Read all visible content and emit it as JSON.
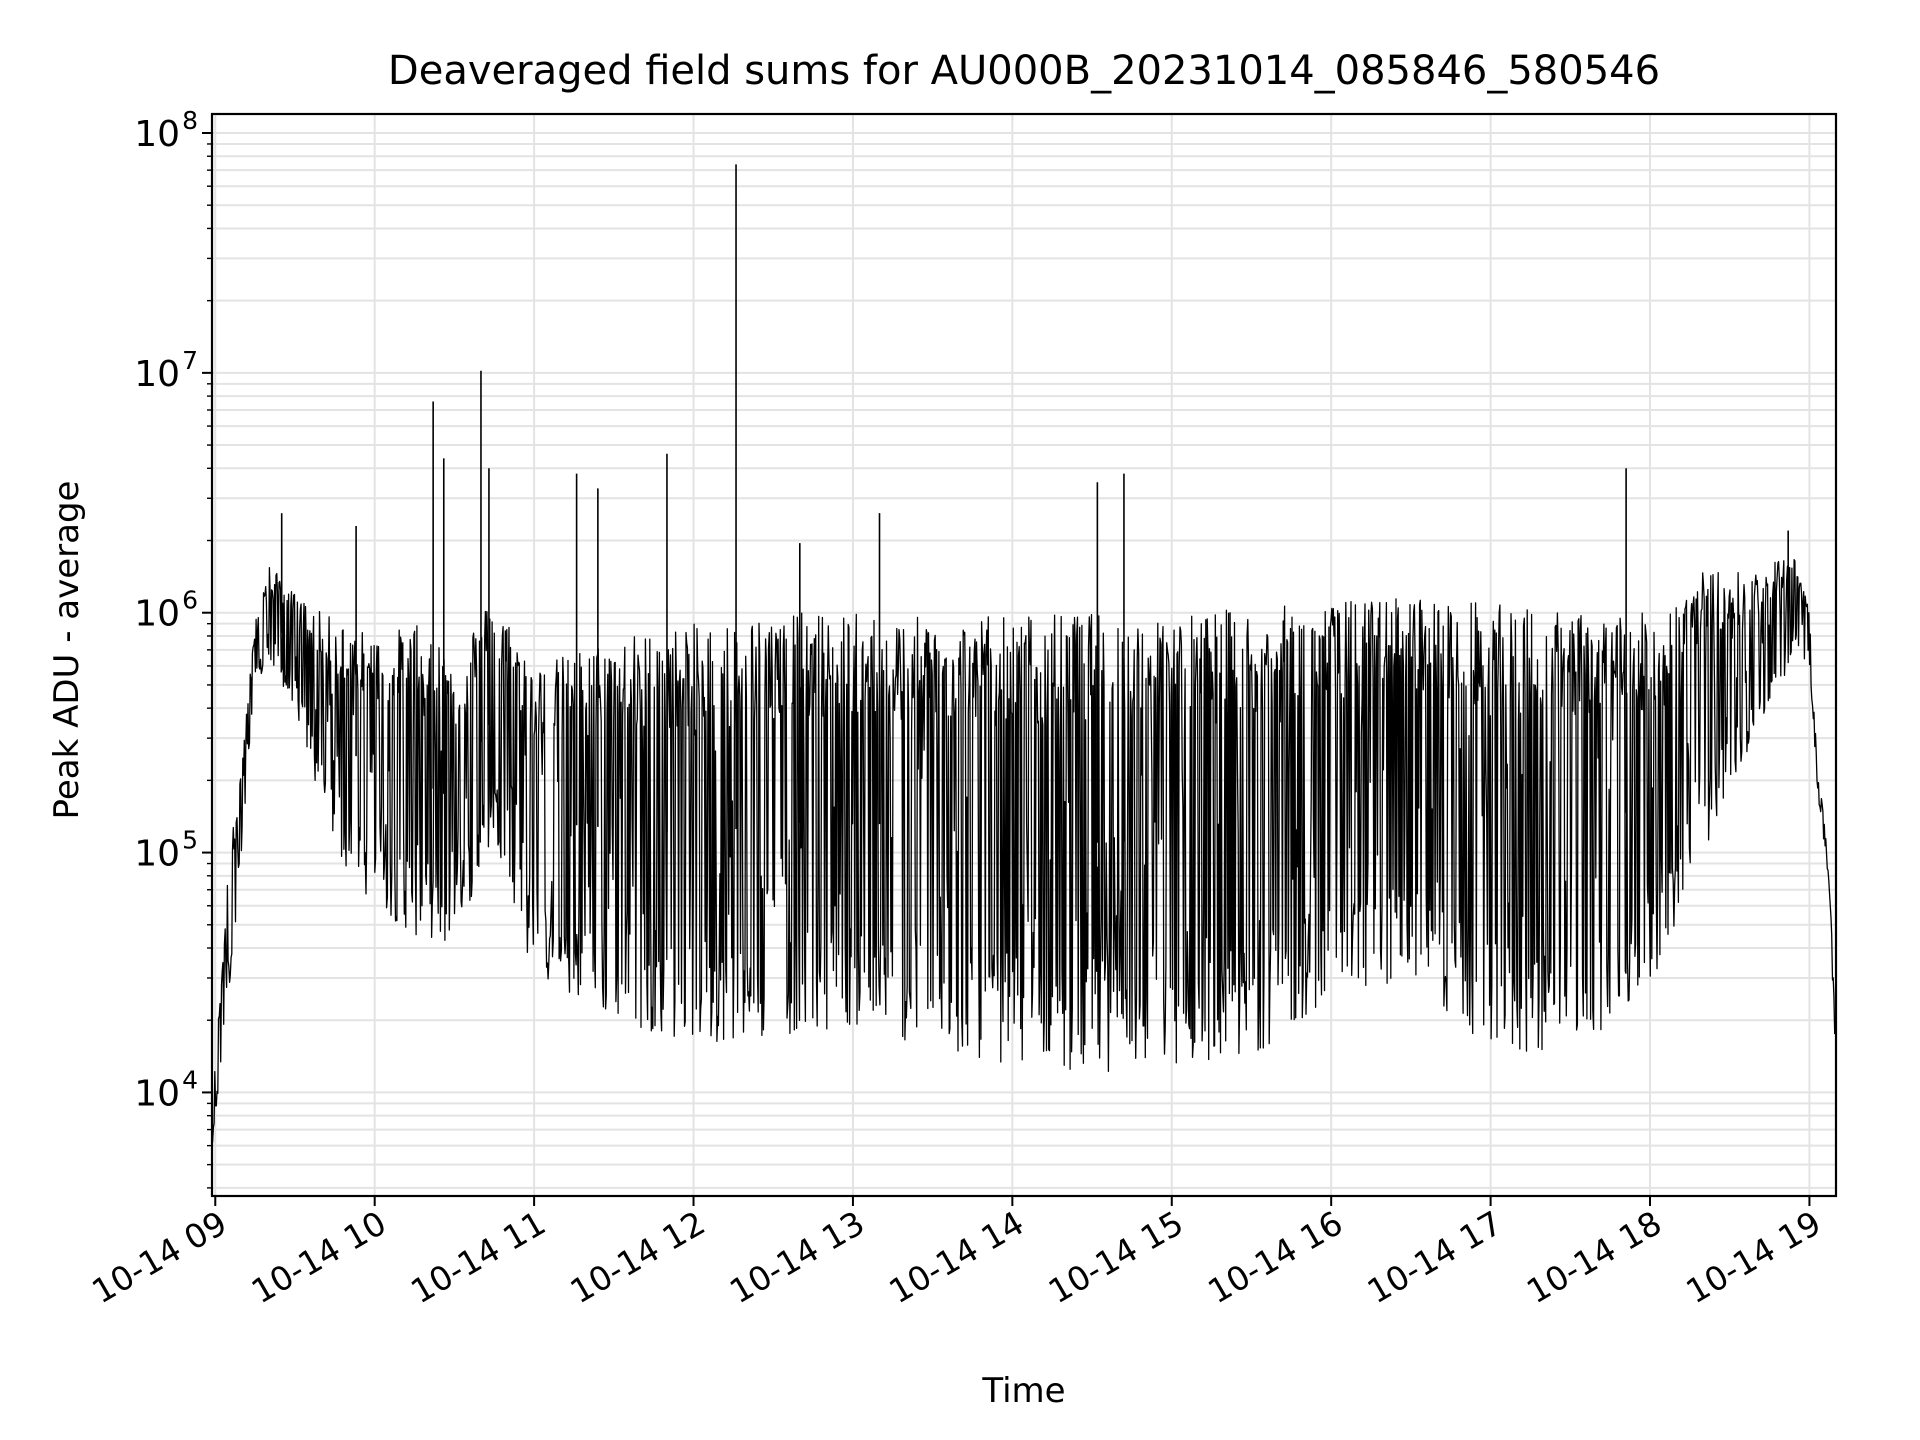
{
  "chart_data": {
    "type": "line",
    "title": "Deaveraged field sums for AU000B_20231014_085846_580546",
    "xlabel": "Time",
    "ylabel": "Peak ADU - average",
    "yscale": "log",
    "ylim": [
      3700,
      120000000
    ],
    "xlim": [
      "2023-10-14T08:58:46",
      "2023-10-14T19:10:00"
    ],
    "grid": true,
    "grid_color": "#e3e3e3",
    "line_color": "#000000",
    "x_ticks": [
      {
        "t": "2023-10-14T09:00:00",
        "label": "10-14 09"
      },
      {
        "t": "2023-10-14T10:00:00",
        "label": "10-14 10"
      },
      {
        "t": "2023-10-14T11:00:00",
        "label": "10-14 11"
      },
      {
        "t": "2023-10-14T12:00:00",
        "label": "10-14 12"
      },
      {
        "t": "2023-10-14T13:00:00",
        "label": "10-14 13"
      },
      {
        "t": "2023-10-14T14:00:00",
        "label": "10-14 14"
      },
      {
        "t": "2023-10-14T15:00:00",
        "label": "10-14 15"
      },
      {
        "t": "2023-10-14T16:00:00",
        "label": "10-14 16"
      },
      {
        "t": "2023-10-14T17:00:00",
        "label": "10-14 17"
      },
      {
        "t": "2023-10-14T18:00:00",
        "label": "10-14 18"
      },
      {
        "t": "2023-10-14T19:00:00",
        "label": "10-14 19"
      }
    ],
    "y_ticks": [
      {
        "value": 10000,
        "base": "10",
        "exp": "4"
      },
      {
        "value": 100000,
        "base": "10",
        "exp": "5"
      },
      {
        "value": 1000000,
        "base": "10",
        "exp": "6"
      },
      {
        "value": 10000000,
        "base": "10",
        "exp": "7"
      },
      {
        "value": 100000000,
        "base": "10",
        "exp": "8"
      }
    ],
    "series": [
      {
        "envelope": [
          {
            "t": "2023-10-14T08:59:00",
            "low": 6000,
            "high": 9000
          },
          {
            "t": "2023-10-14T09:05:00",
            "low": 25000,
            "high": 90000
          },
          {
            "t": "2023-10-14T09:10:00",
            "low": 100000,
            "high": 250000
          },
          {
            "t": "2023-10-14T09:15:00",
            "low": 500000,
            "high": 900000
          },
          {
            "t": "2023-10-14T09:20:00",
            "low": 600000,
            "high": 1600000
          },
          {
            "t": "2023-10-14T09:30:00",
            "low": 400000,
            "high": 1200000
          },
          {
            "t": "2023-10-14T09:40:00",
            "low": 150000,
            "high": 1000000
          },
          {
            "t": "2023-10-14T09:50:00",
            "low": 80000,
            "high": 900000
          },
          {
            "t": "2023-10-14T10:00:00",
            "low": 60000,
            "high": 800000
          },
          {
            "t": "2023-10-14T10:15:00",
            "low": 45000,
            "high": 900000
          },
          {
            "t": "2023-10-14T10:30:00",
            "low": 40000,
            "high": 700000
          },
          {
            "t": "2023-10-14T10:45:00",
            "low": 120000,
            "high": 1200000
          },
          {
            "t": "2023-10-14T11:00:00",
            "low": 30000,
            "high": 600000
          },
          {
            "t": "2023-10-14T11:30:00",
            "low": 20000,
            "high": 800000
          },
          {
            "t": "2023-10-14T12:00:00",
            "low": 16000,
            "high": 900000
          },
          {
            "t": "2023-10-14T12:30:00",
            "low": 17000,
            "high": 1000000
          },
          {
            "t": "2023-10-14T13:00:00",
            "low": 19000,
            "high": 1000000
          },
          {
            "t": "2023-10-14T13:30:00",
            "low": 15000,
            "high": 950000
          },
          {
            "t": "2023-10-14T14:00:00",
            "low": 13000,
            "high": 1000000
          },
          {
            "t": "2023-10-14T14:30:00",
            "low": 12000,
            "high": 1000000
          },
          {
            "t": "2023-10-14T15:00:00",
            "low": 13000,
            "high": 1000000
          },
          {
            "t": "2023-10-14T15:30:00",
            "low": 14000,
            "high": 1050000
          },
          {
            "t": "2023-10-14T16:00:00",
            "low": 25000,
            "high": 1100000
          },
          {
            "t": "2023-10-14T16:30:00",
            "low": 30000,
            "high": 1200000
          },
          {
            "t": "2023-10-14T17:00:00",
            "low": 14000,
            "high": 1100000
          },
          {
            "t": "2023-10-14T17:30:00",
            "low": 15000,
            "high": 1000000
          },
          {
            "t": "2023-10-14T18:00:00",
            "low": 25000,
            "high": 1000000
          },
          {
            "t": "2023-10-14T18:20:00",
            "low": 100000,
            "high": 1500000
          },
          {
            "t": "2023-10-14T18:40:00",
            "low": 300000,
            "high": 1500000
          },
          {
            "t": "2023-10-14T18:55:00",
            "low": 700000,
            "high": 1800000
          },
          {
            "t": "2023-10-14T19:00:00",
            "low": 600000,
            "high": 1000000
          },
          {
            "t": "2023-10-14T19:03:00",
            "low": 180000,
            "high": 220000
          },
          {
            "t": "2023-10-14T19:06:00",
            "low": 100000,
            "high": 130000
          },
          {
            "t": "2023-10-14T19:08:00",
            "low": 40000,
            "high": 60000
          },
          {
            "t": "2023-10-14T19:09:30",
            "low": 17000,
            "high": 22000
          }
        ],
        "spikes": [
          {
            "t": "2023-10-14T09:25:00",
            "value": 2600000
          },
          {
            "t": "2023-10-14T09:53:00",
            "value": 2300000
          },
          {
            "t": "2023-10-14T10:22:00",
            "value": 7600000
          },
          {
            "t": "2023-10-14T10:26:00",
            "value": 4400000
          },
          {
            "t": "2023-10-14T10:40:00",
            "value": 10200000
          },
          {
            "t": "2023-10-14T10:43:00",
            "value": 4000000
          },
          {
            "t": "2023-10-14T11:16:00",
            "value": 3800000
          },
          {
            "t": "2023-10-14T11:24:00",
            "value": 3300000
          },
          {
            "t": "2023-10-14T11:50:00",
            "value": 4600000
          },
          {
            "t": "2023-10-14T12:16:00",
            "value": 74000000
          },
          {
            "t": "2023-10-14T12:40:00",
            "value": 1950000
          },
          {
            "t": "2023-10-14T13:10:00",
            "value": 2600000
          },
          {
            "t": "2023-10-14T14:32:00",
            "value": 3500000
          },
          {
            "t": "2023-10-14T14:42:00",
            "value": 3800000
          },
          {
            "t": "2023-10-14T17:51:00",
            "value": 4000000
          },
          {
            "t": "2023-10-14T18:52:00",
            "value": 2200000
          }
        ]
      }
    ]
  }
}
